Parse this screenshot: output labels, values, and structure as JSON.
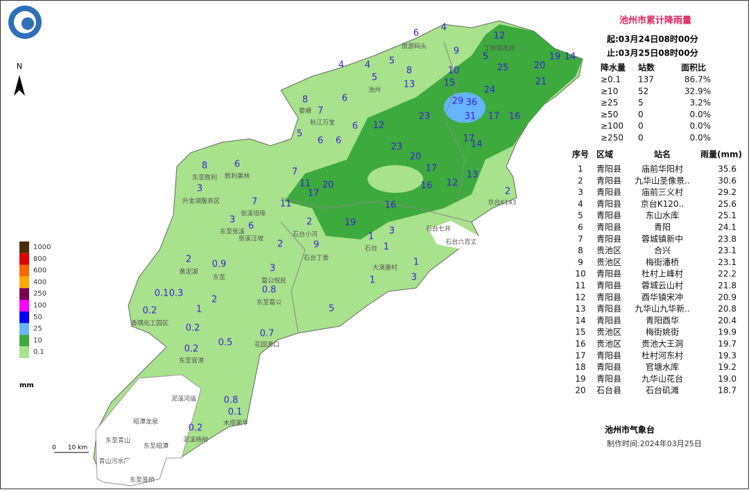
{
  "header": {
    "title": "池州市累计降雨量",
    "start": "起:03月24日08时00分",
    "end": "止:03月25日08时00分"
  },
  "stats": {
    "columns": [
      "降水量",
      "站数",
      "面积比"
    ],
    "rows": [
      [
        "≥0.1",
        "137",
        "86.7%"
      ],
      [
        "≥10",
        "52",
        "32.9%"
      ],
      [
        "≥25",
        "5",
        "3.2%"
      ],
      [
        "≥50",
        "0",
        "0.0%"
      ],
      [
        "≥100",
        "0",
        "0.0%"
      ],
      [
        "≥250",
        "0",
        "0.0%"
      ]
    ]
  },
  "ranking": {
    "columns": [
      "序号",
      "区域",
      "站名",
      "雨量(mm)"
    ],
    "rows": [
      [
        "1",
        "青阳县",
        "庙前华阳村",
        "35.6"
      ],
      [
        "2",
        "青阳县",
        "九华山圣像景..",
        "30.6"
      ],
      [
        "3",
        "青阳县",
        "庙前三义村",
        "29.2"
      ],
      [
        "4",
        "青阳县",
        "京台K120..",
        "25.6"
      ],
      [
        "5",
        "青阳县",
        "东山水库",
        "25.1"
      ],
      [
        "6",
        "青阳县",
        "青阳",
        "24.1"
      ],
      [
        "7",
        "青阳县",
        "蓉城镇新中",
        "23.8"
      ],
      [
        "8",
        "贵池区",
        "合兴",
        "23.1"
      ],
      [
        "9",
        "贵池区",
        "梅街潘桥",
        "23.1"
      ],
      [
        "10",
        "青阳县",
        "杜村上峰村",
        "22.2"
      ],
      [
        "11",
        "青阳县",
        "蓉城云山村",
        "21.8"
      ],
      [
        "12",
        "青阳县",
        "酉华镇宋冲",
        "20.9"
      ],
      [
        "13",
        "青阳县",
        "九华山九华新..",
        "20.8"
      ],
      [
        "14",
        "青阳县",
        "青阳酉华",
        "20.4"
      ],
      [
        "15",
        "贵池区",
        "梅街姚街",
        "19.9"
      ],
      [
        "16",
        "贵池区",
        "贵池大王洞",
        "19.7"
      ],
      [
        "17",
        "青阳县",
        "杜村河东村",
        "19.3"
      ],
      [
        "18",
        "青阳县",
        "官塘水库",
        "19.2"
      ],
      [
        "19",
        "青阳县",
        "九华山花台",
        "19.0"
      ],
      [
        "20",
        "石台县",
        "石台矶滩",
        "18.7"
      ]
    ]
  },
  "footer": {
    "org": "池州市气象台",
    "time": "制作时间:2024年03月25日"
  },
  "legend": {
    "unit": "mm",
    "items": [
      {
        "label": "1000",
        "color": "#4d2e0c"
      },
      {
        "label": "800",
        "color": "#e00000"
      },
      {
        "label": "600",
        "color": "#ff6600"
      },
      {
        "label": "400",
        "color": "#ffaa00"
      },
      {
        "label": "250",
        "color": "#7a0050"
      },
      {
        "label": "100",
        "color": "#ff00ff"
      },
      {
        "label": "50",
        "color": "#0000ff"
      },
      {
        "label": "25",
        "color": "#66b3ff"
      },
      {
        "label": "10",
        "color": "#3daa3d"
      },
      {
        "label": "0.1",
        "color": "#a8e28c"
      }
    ]
  },
  "compass": "N",
  "scale": {
    "zero": "0",
    "label": "10 km"
  },
  "map": {
    "stations": [
      6,
      4,
      12,
      9,
      5,
      19,
      14,
      4,
      4,
      5,
      8,
      10,
      25,
      20,
      21,
      5,
      13,
      15,
      24,
      8,
      6,
      29,
      36,
      7,
      23,
      31,
      17,
      16,
      6,
      12,
      5,
      6,
      6,
      17,
      14,
      23,
      20,
      8,
      6,
      7,
      17,
      13,
      11,
      20,
      16,
      12,
      2,
      3,
      17,
      11,
      7,
      16,
      3,
      6,
      2,
      19,
      1,
      3,
      2,
      9,
      1,
      2,
      0.9,
      3,
      1,
      0.1,
      0.3,
      0.8,
      1,
      3,
      2,
      0.2,
      1,
      5,
      0.2,
      0.7,
      0.5,
      0.2,
      0.8,
      0.1,
      0.2
    ],
    "places": [
      "旅游码头",
      "丁桥镇政府",
      "池州",
      "晏塘",
      "秋江万宝",
      "东至胜利",
      "胜利美林",
      "升金湖服务区",
      "张溪坦埠",
      "东至张溪",
      "张溪汪坡",
      "黄泥湖",
      "东至",
      "葛公悦民",
      "东至葛公",
      "香隅化工园区",
      "花园源口",
      "东至官港",
      "泥溪河庙",
      "昭潭龙泉",
      "东至青山",
      "东至昭潭",
      "青山污水厂",
      "东至笼桥",
      "木塔荣华",
      "泥溪杨树",
      "石台小河",
      "石台丁香",
      "石台",
      "大演康村",
      "石台七井",
      "石台六百丈",
      "京台K143"
    ]
  }
}
